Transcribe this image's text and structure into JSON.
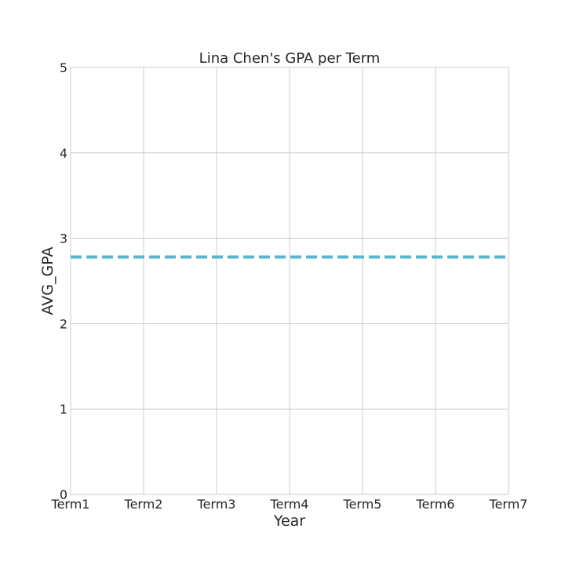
{
  "chart_data": {
    "type": "line",
    "title": "Lina Chen's GPA per Term",
    "xlabel": "Year",
    "ylabel": "AVG_GPA",
    "categories": [
      "Term1",
      "Term2",
      "Term3",
      "Term4",
      "Term5",
      "Term6",
      "Term7"
    ],
    "series": [
      {
        "values": [
          2.78,
          2.78,
          2.78,
          2.78,
          2.78,
          2.78,
          2.78
        ],
        "color": "#5ab4cc",
        "line_style": "dashed"
      }
    ],
    "ylim": [
      0,
      5
    ],
    "yticks": [
      0,
      1,
      2,
      3,
      4,
      5
    ],
    "grid": true,
    "legend": "none"
  }
}
